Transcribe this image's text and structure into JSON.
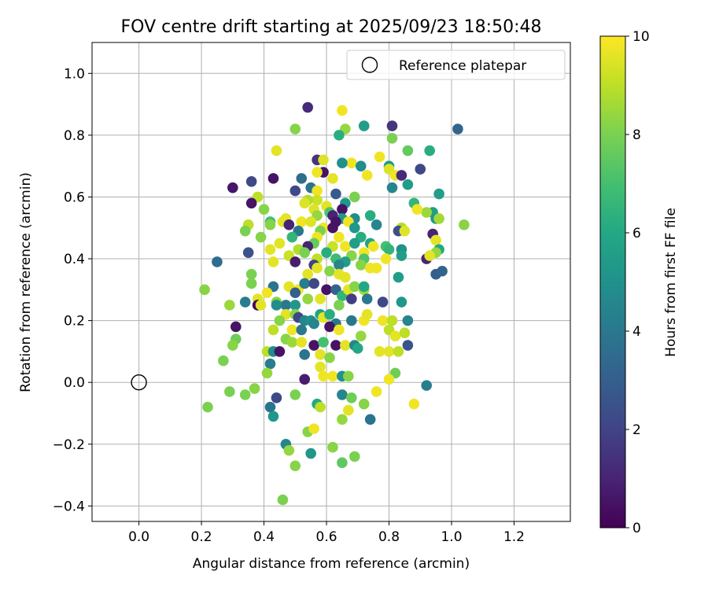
{
  "chart_data": {
    "type": "scatter",
    "title": "FOV centre drift starting at 2025/09/23 18:50:48",
    "xlabel": "Angular distance from reference (arcmin)",
    "ylabel": "Rotation from reference (arcmin)",
    "xlim": [
      -0.15,
      1.38
    ],
    "ylim": [
      -0.45,
      1.1
    ],
    "x_ticks": [
      0.0,
      0.2,
      0.4,
      0.6,
      0.8,
      1.0,
      1.2
    ],
    "x_tick_labels": [
      "0.0",
      "0.2",
      "0.4",
      "0.6",
      "0.8",
      "1.0",
      "1.2"
    ],
    "y_ticks": [
      -0.4,
      -0.2,
      0.0,
      0.2,
      0.4,
      0.6,
      0.8,
      1.0
    ],
    "y_tick_labels": [
      "−0.4",
      "−0.2",
      "0.0",
      "0.2",
      "0.4",
      "0.6",
      "0.8",
      "1.0"
    ],
    "grid": true,
    "legend": {
      "position": "top-right",
      "entries": [
        "Reference platepar"
      ]
    },
    "reference_point": {
      "x": 0.0,
      "y": 0.0
    },
    "colorbar": {
      "label": "Hours from first FF file",
      "min": 0,
      "max": 10,
      "ticks": [
        0,
        2,
        4,
        6,
        8,
        10
      ],
      "tick_labels": [
        "0",
        "2",
        "4",
        "6",
        "8",
        "10"
      ],
      "colormap": "viridis"
    },
    "points": [
      [
        0.54,
        0.89,
        1.2
      ],
      [
        0.65,
        0.88,
        9.8
      ],
      [
        0.72,
        0.83,
        5.5
      ],
      [
        0.81,
        0.83,
        1.5
      ],
      [
        1.02,
        0.82,
        3.2
      ],
      [
        0.5,
        0.82,
        8.2
      ],
      [
        0.66,
        0.82,
        8.4
      ],
      [
        0.64,
        0.8,
        6.2
      ],
      [
        0.81,
        0.79,
        8.0
      ],
      [
        0.44,
        0.75,
        9.6
      ],
      [
        0.77,
        0.73,
        9.8
      ],
      [
        0.93,
        0.75,
        6.2
      ],
      [
        0.86,
        0.75,
        7.6
      ],
      [
        0.57,
        0.72,
        1.5
      ],
      [
        0.59,
        0.72,
        9.5
      ],
      [
        0.68,
        0.71,
        9.8
      ],
      [
        0.65,
        0.71,
        5.0
      ],
      [
        0.71,
        0.7,
        4.8
      ],
      [
        0.8,
        0.7,
        5.3
      ],
      [
        0.8,
        0.69,
        9.5
      ],
      [
        0.9,
        0.69,
        2.2
      ],
      [
        0.82,
        0.67,
        9.8
      ],
      [
        0.84,
        0.67,
        1.2
      ],
      [
        0.73,
        0.67,
        9.8
      ],
      [
        0.59,
        0.68,
        0.5
      ],
      [
        0.57,
        0.68,
        9.8
      ],
      [
        0.52,
        0.66,
        3.5
      ],
      [
        0.43,
        0.66,
        0.5
      ],
      [
        0.36,
        0.65,
        2.2
      ],
      [
        0.62,
        0.66,
        9.6
      ],
      [
        0.86,
        0.64,
        5.5
      ],
      [
        0.81,
        0.63,
        4.5
      ],
      [
        0.3,
        0.63,
        0.6
      ],
      [
        0.5,
        0.62,
        2.2
      ],
      [
        0.55,
        0.63,
        3.8
      ],
      [
        0.57,
        0.62,
        9.8
      ],
      [
        0.96,
        0.61,
        5.5
      ],
      [
        0.63,
        0.61,
        2.8
      ],
      [
        0.69,
        0.6,
        8.0
      ],
      [
        0.57,
        0.59,
        9.2
      ],
      [
        0.38,
        0.6,
        9.0
      ],
      [
        0.54,
        0.59,
        8.8
      ],
      [
        0.36,
        0.58,
        0.5
      ],
      [
        0.66,
        0.58,
        5.2
      ],
      [
        0.88,
        0.58,
        6.5
      ],
      [
        0.53,
        0.58,
        9.5
      ],
      [
        0.6,
        0.57,
        9.6
      ],
      [
        0.56,
        0.56,
        9.5
      ],
      [
        0.61,
        0.55,
        7.2
      ],
      [
        0.65,
        0.56,
        0.5
      ],
      [
        0.94,
        0.55,
        5.6
      ],
      [
        0.92,
        0.55,
        8.5
      ],
      [
        0.89,
        0.56,
        9.8
      ],
      [
        0.4,
        0.56,
        8.2
      ],
      [
        0.62,
        0.54,
        1.0
      ],
      [
        0.95,
        0.53,
        5.2
      ],
      [
        0.57,
        0.54,
        8.4
      ],
      [
        0.65,
        0.53,
        5.3
      ],
      [
        0.42,
        0.52,
        7.0
      ],
      [
        0.35,
        0.51,
        9.0
      ],
      [
        0.46,
        0.52,
        9.6
      ],
      [
        0.47,
        0.53,
        9.6
      ],
      [
        0.52,
        0.52,
        9.8
      ],
      [
        0.55,
        0.52,
        9.5
      ],
      [
        0.63,
        0.52,
        0.5
      ],
      [
        0.69,
        0.53,
        4.8
      ],
      [
        0.74,
        0.54,
        6.2
      ],
      [
        0.96,
        0.53,
        8.6
      ],
      [
        1.04,
        0.51,
        8.2
      ],
      [
        0.67,
        0.52,
        9.8
      ],
      [
        0.48,
        0.51,
        1.0
      ],
      [
        0.42,
        0.51,
        8.2
      ],
      [
        0.51,
        0.49,
        4.0
      ],
      [
        0.34,
        0.49,
        8.0
      ],
      [
        0.59,
        0.5,
        9.8
      ],
      [
        0.58,
        0.49,
        8.0
      ],
      [
        0.62,
        0.5,
        0.5
      ],
      [
        0.69,
        0.5,
        5.2
      ],
      [
        0.76,
        0.51,
        4.5
      ],
      [
        0.84,
        0.5,
        8.8
      ],
      [
        0.83,
        0.49,
        2.4
      ],
      [
        0.94,
        0.48,
        1.0
      ],
      [
        0.85,
        0.49,
        9.5
      ],
      [
        0.39,
        0.47,
        8.2
      ],
      [
        0.49,
        0.47,
        6.5
      ],
      [
        0.57,
        0.47,
        9.8
      ],
      [
        0.64,
        0.47,
        9.8
      ],
      [
        0.71,
        0.47,
        6.2
      ],
      [
        0.74,
        0.45,
        5.8
      ],
      [
        0.79,
        0.44,
        7.0
      ],
      [
        0.95,
        0.46,
        9.6
      ],
      [
        0.45,
        0.45,
        9.6
      ],
      [
        0.56,
        0.45,
        7.6
      ],
      [
        0.54,
        0.44,
        1.0
      ],
      [
        0.62,
        0.44,
        9.2
      ],
      [
        0.66,
        0.44,
        9.8
      ],
      [
        0.69,
        0.45,
        5.5
      ],
      [
        0.75,
        0.44,
        9.8
      ],
      [
        0.8,
        0.43,
        6.5
      ],
      [
        0.84,
        0.43,
        5.0
      ],
      [
        0.96,
        0.43,
        6.0
      ],
      [
        0.95,
        0.42,
        8.4
      ],
      [
        0.42,
        0.43,
        9.6
      ],
      [
        0.51,
        0.43,
        8.8
      ],
      [
        0.53,
        0.42,
        8.0
      ],
      [
        0.6,
        0.42,
        6.2
      ],
      [
        0.68,
        0.41,
        8.2
      ],
      [
        0.72,
        0.42,
        9.8
      ],
      [
        0.35,
        0.42,
        2.5
      ],
      [
        0.48,
        0.41,
        9.2
      ],
      [
        0.57,
        0.4,
        9.0
      ],
      [
        0.63,
        0.4,
        6.8
      ],
      [
        0.66,
        0.39,
        5.5
      ],
      [
        0.72,
        0.4,
        7.2
      ],
      [
        0.79,
        0.4,
        9.8
      ],
      [
        0.84,
        0.41,
        5.5
      ],
      [
        0.92,
        0.4,
        1.0
      ],
      [
        0.93,
        0.41,
        9.6
      ],
      [
        0.25,
        0.39,
        3.5
      ],
      [
        0.43,
        0.39,
        9.6
      ],
      [
        0.5,
        0.39,
        0.8
      ],
      [
        0.56,
        0.38,
        2.0
      ],
      [
        0.57,
        0.37,
        9.6
      ],
      [
        0.64,
        0.38,
        4.5
      ],
      [
        0.71,
        0.38,
        8.2
      ],
      [
        0.74,
        0.37,
        9.8
      ],
      [
        0.61,
        0.36,
        8.2
      ],
      [
        0.54,
        0.35,
        9.6
      ],
      [
        0.36,
        0.35,
        8.0
      ],
      [
        0.64,
        0.35,
        9.6
      ],
      [
        0.66,
        0.34,
        9.6
      ],
      [
        0.76,
        0.37,
        9.8
      ],
      [
        0.83,
        0.34,
        5.5
      ],
      [
        0.95,
        0.35,
        3.0
      ],
      [
        0.97,
        0.36,
        3.2
      ],
      [
        0.36,
        0.32,
        8.0
      ],
      [
        0.43,
        0.31,
        3.8
      ],
      [
        0.48,
        0.31,
        9.6
      ],
      [
        0.51,
        0.3,
        9.8
      ],
      [
        0.5,
        0.29,
        3.0
      ],
      [
        0.53,
        0.32,
        4.2
      ],
      [
        0.56,
        0.32,
        2.2
      ],
      [
        0.6,
        0.3,
        0.5
      ],
      [
        0.63,
        0.3,
        3.2
      ],
      [
        0.65,
        0.28,
        6.5
      ],
      [
        0.67,
        0.3,
        9.6
      ],
      [
        0.72,
        0.3,
        8.6
      ],
      [
        0.69,
        0.31,
        8.2
      ],
      [
        0.72,
        0.31,
        6.0
      ],
      [
        0.21,
        0.3,
        8.2
      ],
      [
        0.38,
        0.27,
        9.6
      ],
      [
        0.41,
        0.29,
        9.8
      ],
      [
        0.44,
        0.26,
        8.2
      ],
      [
        0.47,
        0.25,
        4.0
      ],
      [
        0.5,
        0.25,
        5.2
      ],
      [
        0.54,
        0.27,
        8.4
      ],
      [
        0.58,
        0.27,
        9.6
      ],
      [
        0.64,
        0.25,
        8.0
      ],
      [
        0.68,
        0.27,
        1.8
      ],
      [
        0.73,
        0.27,
        4.0
      ],
      [
        0.78,
        0.26,
        2.2
      ],
      [
        0.84,
        0.26,
        5.2
      ],
      [
        0.29,
        0.25,
        8.5
      ],
      [
        0.34,
        0.26,
        4.2
      ],
      [
        0.38,
        0.25,
        0.2
      ],
      [
        0.44,
        0.25,
        4.8
      ],
      [
        0.47,
        0.22,
        9.6
      ],
      [
        0.5,
        0.22,
        8.2
      ],
      [
        0.51,
        0.21,
        2.0
      ],
      [
        0.53,
        0.2,
        4.5
      ],
      [
        0.55,
        0.2,
        5.0
      ],
      [
        0.58,
        0.22,
        5.8
      ],
      [
        0.59,
        0.21,
        9.6
      ],
      [
        0.61,
        0.22,
        6.2
      ],
      [
        0.63,
        0.19,
        4.0
      ],
      [
        0.68,
        0.2,
        4.0
      ],
      [
        0.72,
        0.2,
        9.8
      ],
      [
        0.73,
        0.22,
        9.6
      ],
      [
        0.78,
        0.2,
        9.8
      ],
      [
        0.81,
        0.2,
        9.0
      ],
      [
        0.86,
        0.2,
        4.5
      ],
      [
        0.45,
        0.2,
        8.2
      ],
      [
        0.39,
        0.25,
        9.6
      ],
      [
        0.31,
        0.18,
        0.5
      ],
      [
        0.43,
        0.17,
        9.0
      ],
      [
        0.49,
        0.17,
        9.8
      ],
      [
        0.52,
        0.17,
        4.0
      ],
      [
        0.56,
        0.19,
        4.5
      ],
      [
        0.61,
        0.18,
        0.5
      ],
      [
        0.64,
        0.17,
        9.8
      ],
      [
        0.8,
        0.17,
        9.0
      ],
      [
        0.82,
        0.15,
        9.6
      ],
      [
        0.85,
        0.16,
        9.0
      ],
      [
        0.47,
        0.14,
        8.2
      ],
      [
        0.49,
        0.13,
        8.5
      ],
      [
        0.52,
        0.13,
        9.6
      ],
      [
        0.56,
        0.12,
        0.5
      ],
      [
        0.59,
        0.13,
        7.0
      ],
      [
        0.63,
        0.12,
        0.5
      ],
      [
        0.66,
        0.12,
        9.6
      ],
      [
        0.69,
        0.12,
        4.5
      ],
      [
        0.71,
        0.15,
        8.4
      ],
      [
        0.77,
        0.1,
        9.6
      ],
      [
        0.8,
        0.1,
        9.6
      ],
      [
        0.83,
        0.1,
        9.0
      ],
      [
        0.86,
        0.12,
        2.5
      ],
      [
        0.31,
        0.14,
        7.8
      ],
      [
        0.3,
        0.12,
        8.2
      ],
      [
        0.41,
        0.1,
        9.0
      ],
      [
        0.43,
        0.1,
        4.8
      ],
      [
        0.45,
        0.1,
        0.5
      ],
      [
        0.53,
        0.09,
        3.8
      ],
      [
        0.58,
        0.09,
        9.6
      ],
      [
        0.61,
        0.08,
        8.2
      ],
      [
        0.7,
        0.11,
        6.0
      ],
      [
        0.42,
        0.06,
        4.2
      ],
      [
        0.27,
        0.07,
        8.0
      ],
      [
        0.58,
        0.05,
        9.6
      ],
      [
        0.82,
        0.03,
        7.8
      ],
      [
        0.41,
        0.03,
        8.4
      ],
      [
        0.53,
        0.01,
        0.8
      ],
      [
        0.59,
        0.02,
        9.8
      ],
      [
        0.62,
        0.02,
        9.8
      ],
      [
        0.65,
        0.02,
        5.0
      ],
      [
        0.67,
        0.02,
        8.2
      ],
      [
        0.8,
        0.01,
        9.8
      ],
      [
        0.92,
        -0.01,
        4.2
      ],
      [
        0.29,
        -0.03,
        8.0
      ],
      [
        0.34,
        -0.04,
        8.0
      ],
      [
        0.37,
        -0.02,
        8.2
      ],
      [
        0.44,
        -0.05,
        2.2
      ],
      [
        0.5,
        -0.04,
        8.0
      ],
      [
        0.65,
        -0.04,
        4.5
      ],
      [
        0.68,
        -0.05,
        7.8
      ],
      [
        0.76,
        -0.03,
        9.8
      ],
      [
        0.22,
        -0.08,
        8.0
      ],
      [
        0.42,
        -0.08,
        3.8
      ],
      [
        0.43,
        -0.11,
        5.2
      ],
      [
        0.57,
        -0.07,
        6.0
      ],
      [
        0.58,
        -0.08,
        9.0
      ],
      [
        0.65,
        -0.12,
        8.4
      ],
      [
        0.67,
        -0.09,
        9.6
      ],
      [
        0.72,
        -0.07,
        8.2
      ],
      [
        0.74,
        -0.12,
        3.8
      ],
      [
        0.88,
        -0.07,
        9.8
      ],
      [
        0.54,
        -0.16,
        8.2
      ],
      [
        0.56,
        -0.15,
        9.8
      ],
      [
        0.47,
        -0.2,
        4.5
      ],
      [
        0.48,
        -0.22,
        8.4
      ],
      [
        0.55,
        -0.23,
        5.2
      ],
      [
        0.62,
        -0.21,
        8.2
      ],
      [
        0.65,
        -0.26,
        7.5
      ],
      [
        0.69,
        -0.24,
        8.0
      ],
      [
        0.5,
        -0.27,
        8.2
      ],
      [
        0.46,
        -0.38,
        8.0
      ]
    ]
  }
}
